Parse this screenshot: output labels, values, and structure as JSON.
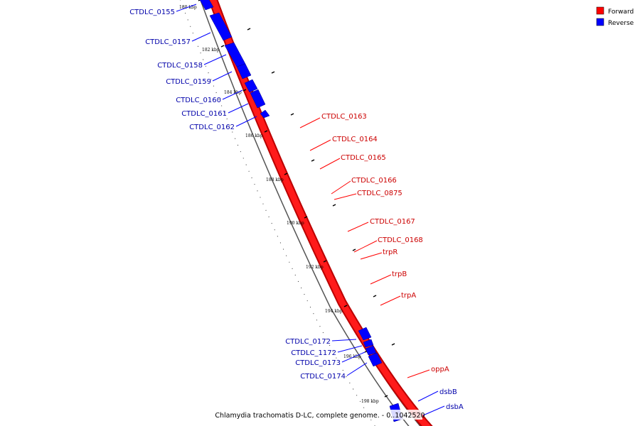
{
  "footer": "Chlamydia trachomatis D-LC, complete genome. - 0..1042520",
  "legend": [
    {
      "label": "Forward",
      "color": "#ff0000"
    },
    {
      "label": "Reverse",
      "color": "#0000ff"
    }
  ],
  "colors": {
    "forward": "#ff0000",
    "reverse": "#0000ff",
    "forward_label": "#cc0000",
    "reverse_label": "#0000aa"
  },
  "ticks": [
    "180 kbp",
    "182 kbp",
    "184 kbp",
    "186 kbp",
    "188 kbp",
    "190 kbp",
    "192 kbp",
    "194 kbp",
    "196 kbp",
    "198 kbp"
  ],
  "forward_genes": [
    "CTDLC_0163",
    "CTDLC_0164",
    "CTDLC_0165",
    "CTDLC_0166",
    "CTDLC_0875",
    "CTDLC_0167",
    "CTDLC_0168",
    "trpR",
    "trpB",
    "trpA",
    "oppA"
  ],
  "reverse_genes": [
    "CTDLC_0155",
    "CTDLC_0157",
    "CTDLC_0158",
    "CTDLC_0159",
    "CTDLC_0160",
    "CTDLC_0161",
    "CTDLC_0162",
    "CTDLC_0172",
    "CTDLC_1172",
    "CTDLC_0173",
    "CTDLC_0174",
    "dsbB",
    "dsbA"
  ]
}
